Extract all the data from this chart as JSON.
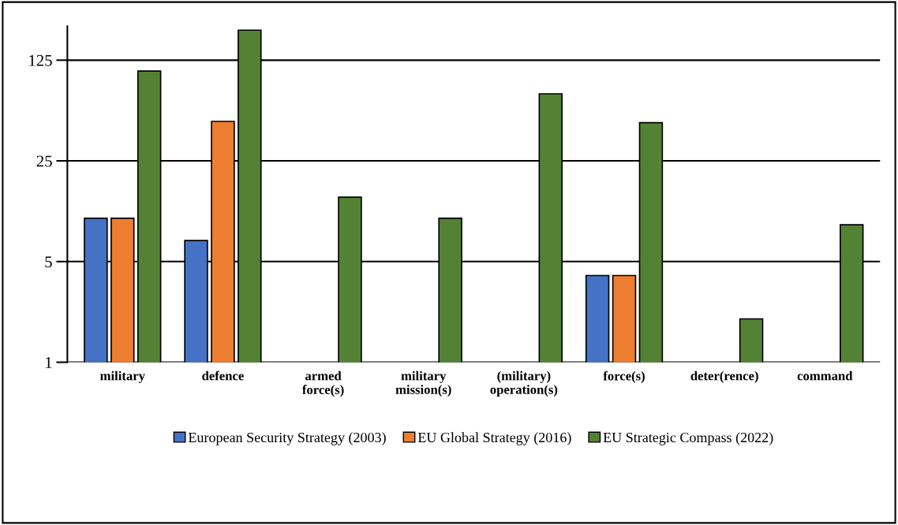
{
  "chart_data": {
    "type": "bar",
    "categories": [
      "military",
      "defence",
      "armed\nforce(s)",
      "military\nmission(s)",
      "(military)\noperation(s)",
      "force(s)",
      "deter(rence)",
      "command"
    ],
    "series": [
      {
        "name": "European Security Strategy (2003)",
        "color": "#4472c4",
        "values": [
          10,
          7,
          null,
          null,
          null,
          4,
          null,
          null
        ]
      },
      {
        "name": "EU Global Strategy (2016)",
        "color": "#ed7d31",
        "values": [
          10,
          47,
          null,
          null,
          null,
          4,
          null,
          null
        ]
      },
      {
        "name": "EU Strategic Compass (2022)",
        "color": "#548235",
        "values": [
          105,
          202,
          14,
          10,
          73,
          46,
          2,
          9
        ]
      }
    ],
    "log": true,
    "ylim": [
      1,
      215
    ],
    "yticks": [
      1,
      5,
      25,
      125
    ],
    "grid": "y",
    "legend": "bottom"
  }
}
